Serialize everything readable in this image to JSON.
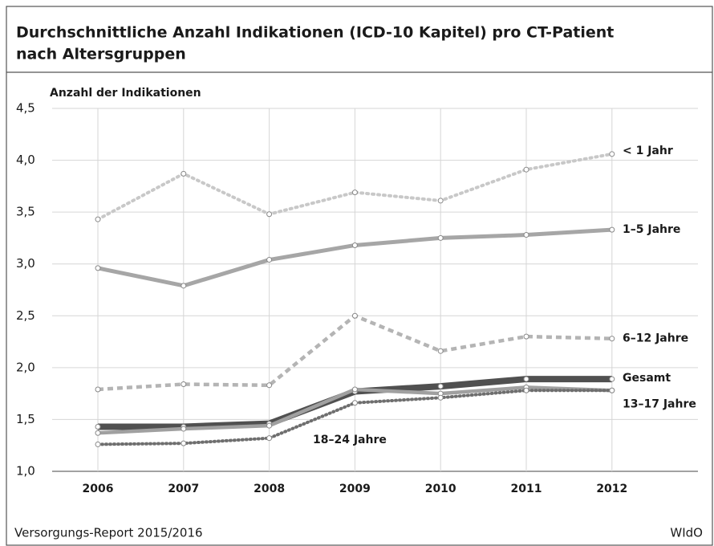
{
  "chart_data": {
    "type": "line",
    "title": [
      "Durchschnittliche Anzahl Indikationen (ICD-10 Kapitel) pro CT-Patient",
      "nach Altersgruppen"
    ],
    "y_label": "Anzahl der Indikationen",
    "categories": [
      "2006",
      "2007",
      "2008",
      "2009",
      "2010",
      "2011",
      "2012"
    ],
    "series": [
      {
        "name": "< 1 Jahr",
        "color": "#c8c8c8",
        "values": [
          3.43,
          3.87,
          3.48,
          3.69,
          3.61,
          3.91,
          4.06
        ]
      },
      {
        "name": "1–5 Jahre",
        "color": "#a6a6a6",
        "values": [
          2.96,
          2.79,
          3.04,
          3.18,
          3.25,
          3.28,
          3.33
        ]
      },
      {
        "name": "6–12 Jahre",
        "color": "#b4b4b4",
        "values": [
          1.79,
          1.84,
          1.83,
          2.5,
          2.16,
          2.3,
          2.28
        ]
      },
      {
        "name": "Gesamt",
        "color": "#505050",
        "values": [
          1.43,
          1.43,
          1.46,
          1.77,
          1.82,
          1.89,
          1.89
        ]
      },
      {
        "name": "13–17 Jahre",
        "color": "#a0a0a0",
        "values": [
          1.37,
          1.41,
          1.44,
          1.79,
          1.75,
          1.81,
          1.78
        ]
      },
      {
        "name": "18–24 Jahre",
        "color": "#6e6e6e",
        "values": [
          1.26,
          1.27,
          1.32,
          1.66,
          1.71,
          1.78,
          1.78
        ]
      }
    ],
    "ylim": [
      1.0,
      4.5
    ],
    "yticks": [
      {
        "value": 1.0,
        "label": "1,0"
      },
      {
        "value": 1.5,
        "label": "1,5"
      },
      {
        "value": 2.0,
        "label": "2,0"
      },
      {
        "value": 2.5,
        "label": "2,5"
      },
      {
        "value": 3.0,
        "label": "3,0"
      },
      {
        "value": 3.5,
        "label": "3,5"
      },
      {
        "value": 4.0,
        "label": "4,0"
      },
      {
        "value": 4.5,
        "label": "4,5"
      }
    ],
    "grid": true,
    "source": "Versorgungs-Report 2015/2016",
    "publisher": "WIdO"
  }
}
